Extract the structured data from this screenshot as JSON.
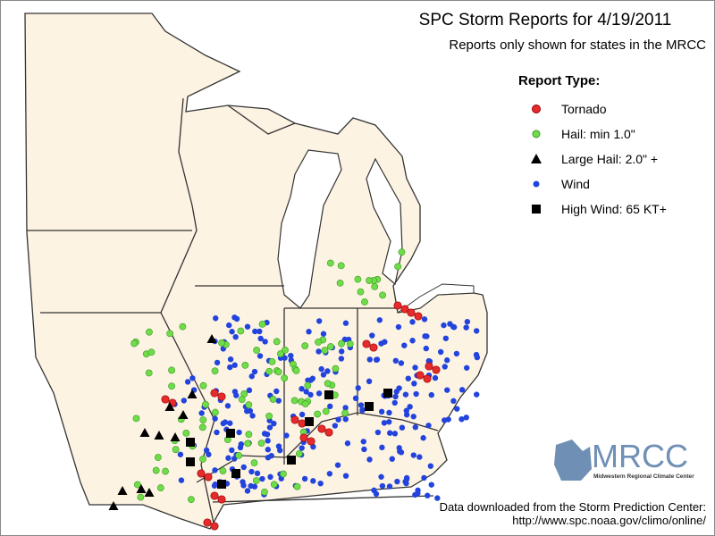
{
  "header": {
    "title": "SPC Storm Reports for 4/19/2011",
    "subtitle": "Reports only shown for states in the MRCC"
  },
  "legend": {
    "title": "Report Type:",
    "items": [
      "Tornado",
      "Hail: min 1.0\"",
      "Large Hail: 2.0\" +",
      "Wind",
      "High Wind: 65 KT+"
    ]
  },
  "logo": {
    "name": "MRCC",
    "caption": "Midwestern Regional Climate Center"
  },
  "footer": {
    "source": "Data downloaded from the Storm Prediction Center:",
    "url": "http://www.spc.noaa.gov/climo/online/"
  }
}
